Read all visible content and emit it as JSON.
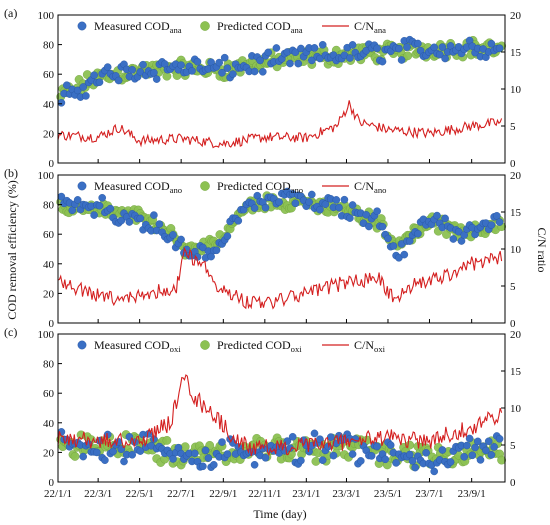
{
  "figure": {
    "x_axis_title": "Time (day)",
    "y_left_title": "COD removal efficiency (%)",
    "y_right_title": "C/N ratio",
    "x_ticks": [
      "22/1/1",
      "22/3/1",
      "22/5/1",
      "22/7/1",
      "22/9/1",
      "22/11/1",
      "23/1/1",
      "23/3/1",
      "23/5/1",
      "23/7/1",
      "23/9/1"
    ],
    "colors": {
      "measured": "#3a6fc4",
      "predicted": "#8cc152",
      "cn_line": "#d42020",
      "axis": "#000000"
    }
  },
  "chart_data": [
    {
      "type": "scatter+line",
      "panel_label": "(a)",
      "legend": {
        "measured_base": "Measured COD",
        "measured_sub": "ana",
        "predicted_base": "Predicted COD",
        "predicted_sub": "ana",
        "line_base": "C/N",
        "line_sub": "ana"
      },
      "ylim_left": [
        0,
        100
      ],
      "yticks_left": [
        0,
        20,
        40,
        60,
        80,
        100
      ],
      "ylim_right": [
        0,
        20
      ],
      "yticks_right": [
        0,
        5,
        10,
        15,
        20
      ],
      "x_range": [
        "2022-01-01",
        "2023-10-20"
      ],
      "measured_trend": [
        {
          "x": "2022-01-05",
          "y": 42
        },
        {
          "x": "2022-03-01",
          "y": 58
        },
        {
          "x": "2022-05-01",
          "y": 63
        },
        {
          "x": "2022-07-01",
          "y": 65
        },
        {
          "x": "2022-09-01",
          "y": 63
        },
        {
          "x": "2022-11-01",
          "y": 68
        },
        {
          "x": "2023-01-01",
          "y": 72
        },
        {
          "x": "2023-03-01",
          "y": 73
        },
        {
          "x": "2023-05-01",
          "y": 76
        },
        {
          "x": "2023-07-01",
          "y": 77
        },
        {
          "x": "2023-09-01",
          "y": 78
        },
        {
          "x": "2023-10-15",
          "y": 77
        }
      ],
      "measured_spread": 9,
      "predicted_trend": [
        {
          "x": "2022-01-05",
          "y": 45
        },
        {
          "x": "2022-03-01",
          "y": 58
        },
        {
          "x": "2022-05-01",
          "y": 62
        },
        {
          "x": "2022-07-01",
          "y": 64
        },
        {
          "x": "2022-09-01",
          "y": 63
        },
        {
          "x": "2022-11-01",
          "y": 68
        },
        {
          "x": "2023-01-01",
          "y": 71
        },
        {
          "x": "2023-03-01",
          "y": 73
        },
        {
          "x": "2023-05-01",
          "y": 75
        },
        {
          "x": "2023-07-01",
          "y": 77
        },
        {
          "x": "2023-09-01",
          "y": 78
        },
        {
          "x": "2023-10-15",
          "y": 76
        }
      ],
      "predicted_spread": 7,
      "cn_trend": [
        {
          "x": "2022-01-01",
          "y": 3.8
        },
        {
          "x": "2022-03-01",
          "y": 3.5
        },
        {
          "x": "2022-04-01",
          "y": 4.8
        },
        {
          "x": "2022-05-01",
          "y": 3.0
        },
        {
          "x": "2022-07-01",
          "y": 3.3
        },
        {
          "x": "2022-09-01",
          "y": 2.6
        },
        {
          "x": "2022-11-01",
          "y": 3.5
        },
        {
          "x": "2023-01-01",
          "y": 3.4
        },
        {
          "x": "2023-02-15",
          "y": 5.0
        },
        {
          "x": "2023-03-05",
          "y": 8.0
        },
        {
          "x": "2023-03-20",
          "y": 5.5
        },
        {
          "x": "2023-05-01",
          "y": 4.5
        },
        {
          "x": "2023-07-01",
          "y": 4.0
        },
        {
          "x": "2023-09-01",
          "y": 5.0
        },
        {
          "x": "2023-10-15",
          "y": 5.5
        }
      ],
      "cn_noise": 0.7
    },
    {
      "type": "scatter+line",
      "panel_label": "(b)",
      "legend": {
        "measured_base": "Measured COD",
        "measured_sub": "ano",
        "predicted_base": "Predicted COD",
        "predicted_sub": "ano",
        "line_base": "C/N",
        "line_sub": "ano"
      },
      "ylim_left": [
        0,
        100
      ],
      "yticks_left": [
        0,
        20,
        40,
        60,
        80,
        100
      ],
      "ylim_right": [
        0,
        20
      ],
      "yticks_right": [
        0,
        5,
        10,
        15,
        20
      ],
      "x_range": [
        "2022-01-01",
        "2023-10-20"
      ],
      "measured_trend": [
        {
          "x": "2022-01-05",
          "y": 80
        },
        {
          "x": "2022-03-01",
          "y": 78
        },
        {
          "x": "2022-05-01",
          "y": 72
        },
        {
          "x": "2022-06-15",
          "y": 58
        },
        {
          "x": "2022-07-15",
          "y": 45
        },
        {
          "x": "2022-09-01",
          "y": 55
        },
        {
          "x": "2022-10-01",
          "y": 80
        },
        {
          "x": "2022-11-15",
          "y": 84
        },
        {
          "x": "2023-01-01",
          "y": 82
        },
        {
          "x": "2023-03-01",
          "y": 78
        },
        {
          "x": "2023-04-15",
          "y": 68
        },
        {
          "x": "2023-05-15",
          "y": 45
        },
        {
          "x": "2023-07-01",
          "y": 72
        },
        {
          "x": "2023-08-15",
          "y": 60
        },
        {
          "x": "2023-10-15",
          "y": 68
        }
      ],
      "measured_spread": 8,
      "predicted_trend": [
        {
          "x": "2022-01-05",
          "y": 78
        },
        {
          "x": "2022-03-01",
          "y": 76
        },
        {
          "x": "2022-05-01",
          "y": 72
        },
        {
          "x": "2022-06-15",
          "y": 60
        },
        {
          "x": "2022-07-15",
          "y": 48
        },
        {
          "x": "2022-09-01",
          "y": 56
        },
        {
          "x": "2022-10-01",
          "y": 78
        },
        {
          "x": "2022-11-15",
          "y": 82
        },
        {
          "x": "2023-01-01",
          "y": 80
        },
        {
          "x": "2023-03-01",
          "y": 76
        },
        {
          "x": "2023-04-15",
          "y": 68
        },
        {
          "x": "2023-05-15",
          "y": 52
        },
        {
          "x": "2023-07-01",
          "y": 70
        },
        {
          "x": "2023-08-15",
          "y": 60
        },
        {
          "x": "2023-10-15",
          "y": 66
        }
      ],
      "predicted_spread": 6,
      "cn_trend": [
        {
          "x": "2022-01-01",
          "y": 6.0
        },
        {
          "x": "2022-02-15",
          "y": 4.0
        },
        {
          "x": "2022-04-01",
          "y": 3.0
        },
        {
          "x": "2022-05-15",
          "y": 4.0
        },
        {
          "x": "2022-06-25",
          "y": 5.0
        },
        {
          "x": "2022-07-05",
          "y": 9.5
        },
        {
          "x": "2022-08-01",
          "y": 8.0
        },
        {
          "x": "2022-08-25",
          "y": 5.0
        },
        {
          "x": "2022-10-01",
          "y": 3.0
        },
        {
          "x": "2022-11-15",
          "y": 2.8
        },
        {
          "x": "2023-01-01",
          "y": 4.0
        },
        {
          "x": "2023-03-01",
          "y": 5.5
        },
        {
          "x": "2023-04-20",
          "y": 6.0
        },
        {
          "x": "2023-05-10",
          "y": 3.0
        },
        {
          "x": "2023-06-01",
          "y": 5.0
        },
        {
          "x": "2023-07-15",
          "y": 6.0
        },
        {
          "x": "2023-09-01",
          "y": 8.0
        },
        {
          "x": "2023-10-15",
          "y": 9.0
        }
      ],
      "cn_noise": 1.0
    },
    {
      "type": "scatter+line",
      "panel_label": "(c)",
      "legend": {
        "measured_base": "Measured COD",
        "measured_sub": "oxi",
        "predicted_base": "Predicted COD",
        "predicted_sub": "oxi",
        "line_base": "C/N",
        "line_sub": "oxi"
      },
      "ylim_left": [
        0,
        100
      ],
      "yticks_left": [
        0,
        20,
        40,
        60,
        80,
        100
      ],
      "ylim_right": [
        0,
        20
      ],
      "yticks_right": [
        0,
        5,
        10,
        15,
        20
      ],
      "x_range": [
        "2022-01-01",
        "2023-10-20"
      ],
      "measured_trend": [
        {
          "x": "2022-01-05",
          "y": 25
        },
        {
          "x": "2022-03-01",
          "y": 22
        },
        {
          "x": "2022-05-01",
          "y": 25
        },
        {
          "x": "2022-07-01",
          "y": 15
        },
        {
          "x": "2022-09-01",
          "y": 22
        },
        {
          "x": "2022-11-01",
          "y": 20
        },
        {
          "x": "2023-01-01",
          "y": 22
        },
        {
          "x": "2023-03-01",
          "y": 25
        },
        {
          "x": "2023-05-01",
          "y": 18
        },
        {
          "x": "2023-07-01",
          "y": 15
        },
        {
          "x": "2023-09-01",
          "y": 20
        },
        {
          "x": "2023-10-15",
          "y": 22
        }
      ],
      "measured_spread": 12,
      "predicted_trend": [
        {
          "x": "2022-01-05",
          "y": 26
        },
        {
          "x": "2022-03-01",
          "y": 23
        },
        {
          "x": "2022-05-01",
          "y": 26
        },
        {
          "x": "2022-07-01",
          "y": 17
        },
        {
          "x": "2022-09-01",
          "y": 22
        },
        {
          "x": "2022-11-01",
          "y": 22
        },
        {
          "x": "2023-01-01",
          "y": 22
        },
        {
          "x": "2023-03-01",
          "y": 24
        },
        {
          "x": "2023-05-01",
          "y": 19
        },
        {
          "x": "2023-07-01",
          "y": 17
        },
        {
          "x": "2023-09-01",
          "y": 20
        },
        {
          "x": "2023-10-15",
          "y": 22
        }
      ],
      "predicted_spread": 10,
      "cn_trend": [
        {
          "x": "2022-01-01",
          "y": 6.0
        },
        {
          "x": "2022-03-01",
          "y": 5.5
        },
        {
          "x": "2022-05-01",
          "y": 5.5
        },
        {
          "x": "2022-06-15",
          "y": 8.0
        },
        {
          "x": "2022-07-05",
          "y": 14.0
        },
        {
          "x": "2022-07-25",
          "y": 11.0
        },
        {
          "x": "2022-08-20",
          "y": 9.0
        },
        {
          "x": "2022-09-15",
          "y": 6.0
        },
        {
          "x": "2022-10-15",
          "y": 4.5
        },
        {
          "x": "2023-01-01",
          "y": 4.8
        },
        {
          "x": "2023-03-01",
          "y": 5.5
        },
        {
          "x": "2023-05-01",
          "y": 6.0
        },
        {
          "x": "2023-07-01",
          "y": 5.5
        },
        {
          "x": "2023-09-01",
          "y": 7.5
        },
        {
          "x": "2023-10-15",
          "y": 9.0
        }
      ],
      "cn_noise": 1.2
    }
  ]
}
